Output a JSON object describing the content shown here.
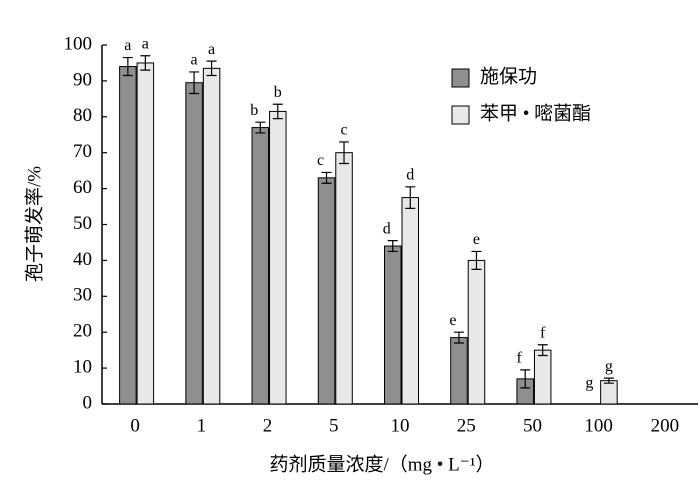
{
  "chart_data": {
    "type": "bar",
    "x_label": "药剂质量浓度/（mg • L⁻¹）",
    "y_label": "孢子萌发率/%",
    "categories": [
      "0",
      "1",
      "2",
      "5",
      "10",
      "25",
      "50",
      "100",
      "200"
    ],
    "series": [
      {
        "name": "施保功",
        "color": "#8f8f8f",
        "values": [
          94,
          89.5,
          77,
          63,
          44,
          18.5,
          7,
          0,
          0
        ],
        "errors": [
          2.5,
          3,
          1.5,
          1.5,
          1.5,
          1.5,
          2.5,
          0,
          0
        ],
        "letters": [
          "a",
          "a",
          "b",
          "c",
          "d",
          "e",
          "f",
          "g",
          null
        ]
      },
      {
        "name": "苯甲 • 嘧菌酯",
        "color": "#e8e8e8",
        "values": [
          95,
          93.5,
          81.5,
          70,
          57.5,
          40,
          15,
          6.5,
          0
        ],
        "errors": [
          2,
          2,
          2,
          3,
          3,
          2.5,
          1.5,
          0.7,
          0
        ],
        "letters": [
          "a",
          "a",
          "b",
          "c",
          "d",
          "e",
          "f",
          "g",
          null
        ]
      }
    ],
    "ylim": [
      0,
      100
    ],
    "yticks": [
      0,
      10,
      20,
      30,
      40,
      50,
      60,
      70,
      80,
      90,
      100
    ],
    "legend": "upper-right"
  }
}
